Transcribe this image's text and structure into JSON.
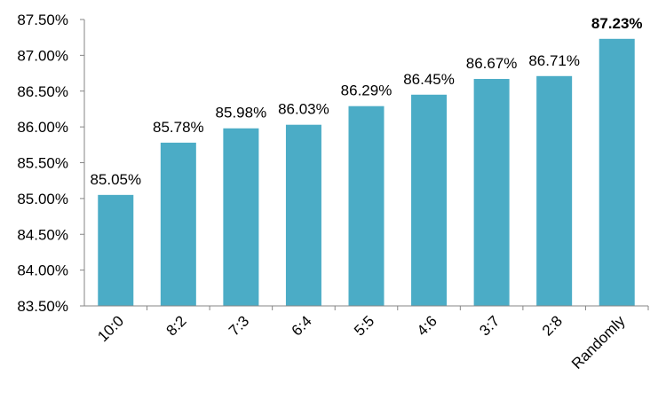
{
  "chart_data": {
    "type": "bar",
    "categories": [
      "10:0",
      "8:2",
      "7:3",
      "6:4",
      "5:5",
      "4:6",
      "3:7",
      "2:8",
      "Randomly"
    ],
    "values": [
      85.05,
      85.78,
      85.98,
      86.03,
      86.29,
      86.45,
      86.67,
      86.71,
      87.23
    ],
    "value_labels": [
      "85.05%",
      "85.78%",
      "85.98%",
      "86.03%",
      "86.29%",
      "86.45%",
      "86.67%",
      "86.71%",
      "87.23%"
    ],
    "highlight_index": 8,
    "y_ticks": [
      83.5,
      84.0,
      84.5,
      85.0,
      85.5,
      86.0,
      86.5,
      87.0,
      87.5
    ],
    "y_tick_labels": [
      "83.50%",
      "84.00%",
      "84.50%",
      "85.00%",
      "85.50%",
      "86.00%",
      "86.50%",
      "87.00%",
      "87.50%"
    ],
    "ylim": [
      83.5,
      87.5
    ],
    "title": "",
    "xlabel": "",
    "ylabel": "",
    "grid": false,
    "legend": "none",
    "bar_color": "#4BACC6"
  }
}
